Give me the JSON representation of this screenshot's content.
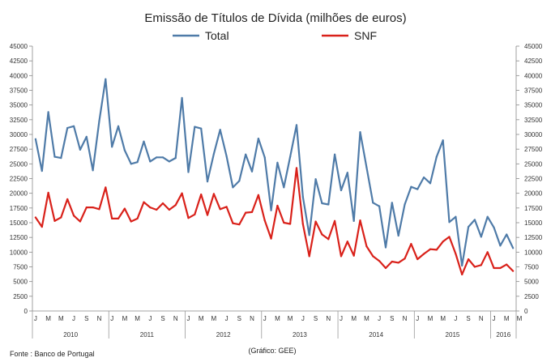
{
  "chart_data": {
    "type": "line",
    "title": "Emissão de Títulos de Dívida (milhões de euros)",
    "source": "Fonte : Banco de Portugal",
    "credit": "(Gráfico: GEE)",
    "ylim": [
      0,
      45000
    ],
    "yticks": [
      0,
      2500,
      5000,
      7500,
      10000,
      12500,
      15000,
      17500,
      20000,
      22500,
      25000,
      27500,
      30000,
      32500,
      35000,
      37500,
      40000,
      42500,
      45000
    ],
    "month_letters": [
      "J",
      "M",
      "M",
      "J",
      "S",
      "N"
    ],
    "years": [
      "2010",
      "2011",
      "2012",
      "2013",
      "2014",
      "2015",
      "2016"
    ],
    "last_year_month_letters": [
      "J",
      "M",
      "M"
    ],
    "series": [
      {
        "name": "Total",
        "color": "#4f7ba8",
        "values": [
          29200,
          23800,
          33800,
          26200,
          26000,
          31100,
          31400,
          27400,
          29600,
          23900,
          32300,
          39400,
          27900,
          31400,
          27300,
          25000,
          25300,
          28800,
          25400,
          26100,
          26100,
          25400,
          26000,
          36200,
          23600,
          31300,
          31000,
          22000,
          26700,
          30800,
          26300,
          21000,
          22100,
          26600,
          23700,
          29300,
          26100,
          17100,
          25200,
          21000,
          26200,
          31600,
          19400,
          12900,
          22400,
          18300,
          18100,
          26600,
          20500,
          23500,
          15300,
          30400,
          24400,
          18400,
          17800,
          10800,
          18400,
          12800,
          18100,
          21100,
          20700,
          22700,
          21700,
          26200,
          29000,
          15100,
          16000,
          7700,
          14300,
          15500,
          12600,
          16000,
          14200,
          11100,
          13000,
          10700
        ]
      },
      {
        "name": "SNF",
        "color": "#d9211a",
        "values": [
          15900,
          14300,
          20100,
          15300,
          15900,
          19000,
          16200,
          15200,
          17600,
          17600,
          17300,
          21000,
          15700,
          15700,
          17400,
          15200,
          15700,
          18500,
          17600,
          17200,
          18300,
          17200,
          18000,
          20000,
          15800,
          16400,
          19800,
          16300,
          19900,
          17300,
          17700,
          14900,
          14700,
          16700,
          16800,
          19700,
          15400,
          12300,
          17900,
          15000,
          14800,
          24300,
          14800,
          9300,
          15200,
          13000,
          12200,
          15300,
          9300,
          11800,
          9400,
          15400,
          11000,
          9300,
          8500,
          7300,
          8400,
          8200,
          8900,
          11400,
          8800,
          9700,
          10500,
          10400,
          11800,
          12600,
          9700,
          6200,
          8800,
          7500,
          7800,
          10000,
          7300,
          7300,
          7900,
          6800
        ]
      }
    ]
  }
}
